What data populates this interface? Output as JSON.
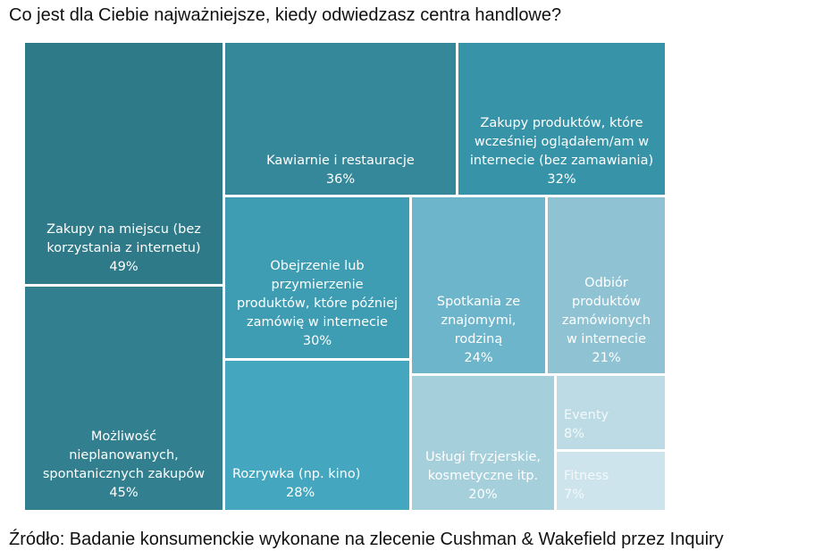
{
  "chart_data": {
    "type": "treemap",
    "title": "Co jest dla Ciebie najważniejsze, kiedy odwiedzasz centra handlowe?",
    "source": "Źródło: Badanie konsumenckie wykonane na zlecenie Cushman & Wakefield przez Inquiry",
    "items": [
      {
        "label": "Zakupy na miejscu (bez korzystania z internetu)",
        "value": 49,
        "value_label": "49%",
        "color": "#2e7a89",
        "text_color": "#ffffff"
      },
      {
        "label": "Możliwość nieplanowanych, spontanicznych zakupów",
        "value": 45,
        "value_label": "45%",
        "color": "#317f8f",
        "text_color": "#ffffff"
      },
      {
        "label": "Kawiarnie i restauracje",
        "value": 36,
        "value_label": "36%",
        "color": "#35889a",
        "text_color": "#ffffff"
      },
      {
        "label": "Zakupy produktów, które wcześniej oglądałem/am w internecie (bez zamawiania)",
        "value": 32,
        "value_label": "32%",
        "color": "#3793a8",
        "text_color": "#ffffff"
      },
      {
        "label": "Obejrzenie lub przymierzenie produktów, które później zamówię w internecie",
        "value": 30,
        "value_label": "30%",
        "color": "#3e9db3",
        "text_color": "#ffffff"
      },
      {
        "label": "Rozrywka (np. kino)",
        "value": 28,
        "value_label": "28%",
        "color": "#45a7bf",
        "text_color": "#ffffff"
      },
      {
        "label": "Spotkania ze znajomymi, rodziną",
        "value": 24,
        "value_label": "24%",
        "color": "#6cb5cb",
        "text_color": "#ffffff"
      },
      {
        "label": "Odbiór produktów zamówionych w internecie",
        "value": 21,
        "value_label": "21%",
        "color": "#8fc3d4",
        "text_color": "#ffffff"
      },
      {
        "label": "Usługi fryzjerskie, kosmetyczne itp.",
        "value": 20,
        "value_label": "20%",
        "color": "#a6cfdc",
        "text_color": "#ffffff"
      },
      {
        "label": "Eventy",
        "value": 8,
        "value_label": "8%",
        "color": "#bcdbe5",
        "text_color": "#f4f9fb"
      },
      {
        "label": "Fitness",
        "value": 7,
        "value_label": "7%",
        "color": "#cde4ec",
        "text_color": "#f4f9fb"
      }
    ]
  }
}
